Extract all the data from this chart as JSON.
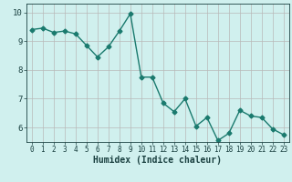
{
  "x": [
    0,
    1,
    2,
    3,
    4,
    5,
    6,
    7,
    8,
    9,
    10,
    11,
    12,
    13,
    14,
    15,
    16,
    17,
    18,
    19,
    20,
    21,
    22,
    23
  ],
  "y": [
    9.4,
    9.45,
    9.3,
    9.35,
    9.25,
    8.85,
    8.45,
    8.8,
    9.35,
    9.95,
    7.75,
    7.75,
    6.85,
    6.55,
    7.0,
    6.05,
    6.35,
    5.55,
    5.8,
    6.6,
    6.4,
    6.35,
    5.95,
    5.75
  ],
  "line_color": "#1a7a6e",
  "marker": "D",
  "marker_size": 2.5,
  "bg_color": "#d0f0ee",
  "grid_color": "#b8b8b8",
  "xlabel": "Humidex (Indice chaleur)",
  "xlabel_color": "#1a4040",
  "ylim": [
    5.5,
    10.3
  ],
  "yticks": [
    6,
    7,
    8,
    9,
    10
  ],
  "xticks": [
    0,
    1,
    2,
    3,
    4,
    5,
    6,
    7,
    8,
    9,
    10,
    11,
    12,
    13,
    14,
    15,
    16,
    17,
    18,
    19,
    20,
    21,
    22,
    23
  ],
  "axis_color": "#1a4040",
  "tick_color": "#1a4040",
  "linewidth": 1.0,
  "tick_fontsize": 5.5,
  "ylabel_fontsize": 6.5,
  "xlabel_fontsize": 7.0
}
